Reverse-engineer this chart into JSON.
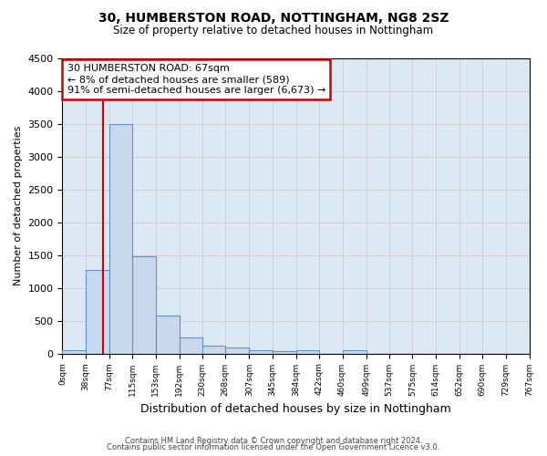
{
  "title1": "30, HUMBERSTON ROAD, NOTTINGHAM, NG8 2SZ",
  "title2": "Size of property relative to detached houses in Nottingham",
  "xlabel": "Distribution of detached houses by size in Nottingham",
  "ylabel": "Number of detached properties",
  "footer1": "Contains HM Land Registry data © Crown copyright and database right 2024.",
  "footer2": "Contains public sector information licensed under the Open Government Licence v3.0.",
  "annotation_line1": "30 HUMBERSTON ROAD: 67sqm",
  "annotation_line2": "← 8% of detached houses are smaller (589)",
  "annotation_line3": "91% of semi-detached houses are larger (6,673) →",
  "property_size": 67,
  "bin_edges": [
    0,
    38,
    77,
    115,
    153,
    192,
    230,
    268,
    307,
    345,
    384,
    422,
    460,
    499,
    537,
    575,
    614,
    652,
    690,
    729,
    767
  ],
  "bar_heights": [
    50,
    1270,
    3500,
    1480,
    580,
    240,
    115,
    85,
    55,
    40,
    55,
    0,
    55,
    0,
    0,
    0,
    0,
    0,
    0,
    0
  ],
  "bar_color": "#c8d8ee",
  "bar_edge_color": "#6090c8",
  "grid_color": "#cccccc",
  "vline_color": "#cc0000",
  "annotation_box_edge_color": "#cc0000",
  "ylim": [
    0,
    4500
  ],
  "yticks": [
    0,
    500,
    1000,
    1500,
    2000,
    2500,
    3000,
    3500,
    4000,
    4500
  ],
  "background_color": "#dde8f5"
}
